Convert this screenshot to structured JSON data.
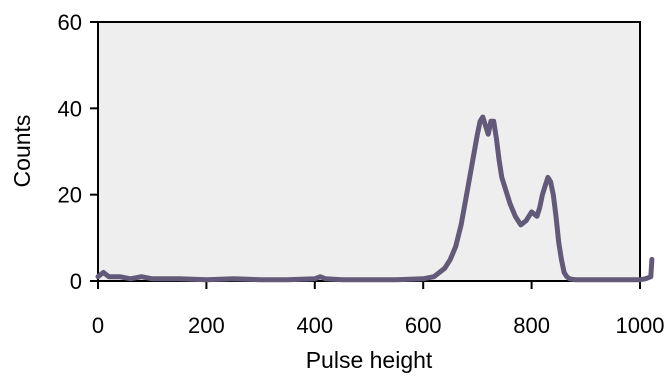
{
  "chart_data": {
    "type": "line",
    "title": "",
    "xlabel": "Pulse height",
    "ylabel": "Counts",
    "xlim": [
      0,
      1000
    ],
    "ylim": [
      0,
      60
    ],
    "x_ticks": [
      0,
      200,
      400,
      600,
      800,
      1000
    ],
    "x_tick_labels": [
      "0",
      "200",
      "400",
      "600",
      "800",
      "1000"
    ],
    "y_ticks": [
      0,
      20,
      40,
      60
    ],
    "y_tick_labels": [
      "0",
      "20",
      "40",
      "60"
    ],
    "grid": false,
    "legend": "none",
    "plot_background": "#eeeeee",
    "series_color": "#625a78",
    "series": [
      {
        "x": [
          0,
          10,
          20,
          40,
          60,
          80,
          100,
          150,
          200,
          250,
          300,
          350,
          400,
          410,
          420,
          450,
          500,
          550,
          600,
          620,
          640,
          650,
          660,
          670,
          680,
          690,
          700,
          705,
          710,
          715,
          720,
          725,
          730,
          735,
          740,
          745,
          750,
          760,
          770,
          780,
          790,
          800,
          810,
          815,
          820,
          825,
          830,
          835,
          840,
          845,
          850,
          855,
          860,
          865,
          870,
          880,
          900,
          950,
          1000,
          1010,
          1020,
          1022
        ],
        "y": [
          1,
          2,
          1,
          1,
          0.5,
          1,
          0.5,
          0.5,
          0.3,
          0.5,
          0.3,
          0.3,
          0.5,
          1,
          0.5,
          0.3,
          0.3,
          0.3,
          0.5,
          1,
          3,
          5,
          8,
          13,
          20,
          27,
          34,
          37,
          38,
          36,
          34,
          37,
          37,
          33,
          28,
          24,
          22,
          18,
          15,
          13,
          14,
          16,
          15,
          17,
          20,
          22,
          24,
          23,
          20,
          15,
          9,
          5,
          2,
          1,
          0.5,
          0.3,
          0.3,
          0.3,
          0.3,
          0.5,
          1,
          5
        ]
      }
    ]
  }
}
